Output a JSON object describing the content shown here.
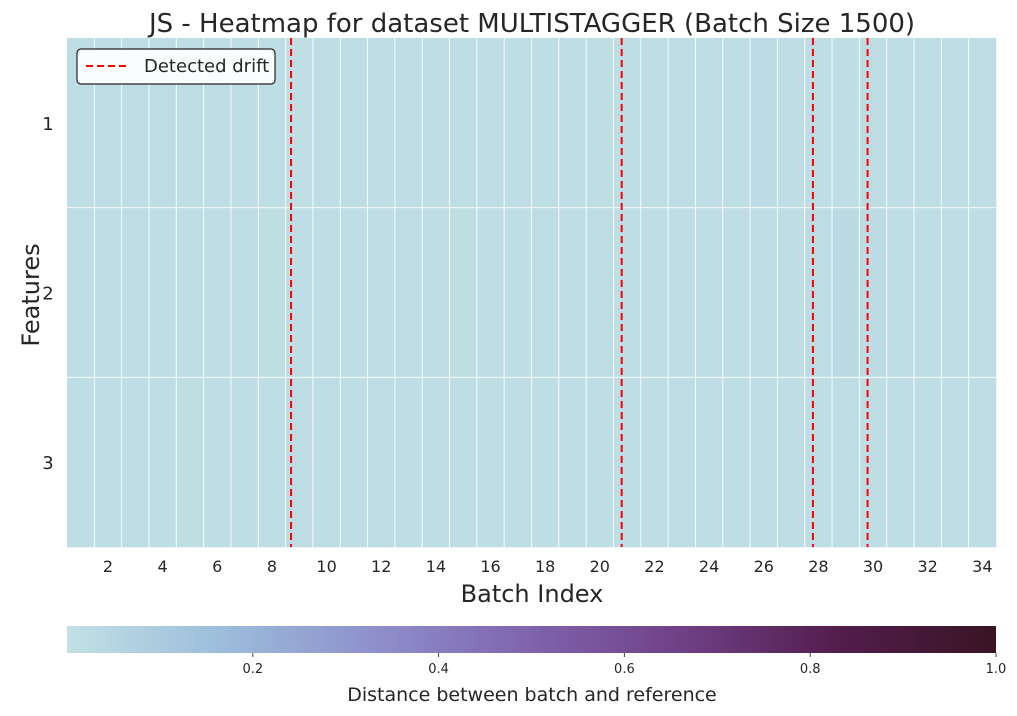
{
  "chart_data": {
    "type": "heatmap",
    "title": "JS - Heatmap for dataset MULTISTAGGER (Batch Size 1500)",
    "xlabel": "Batch Index",
    "ylabel": "Features",
    "x": [
      1,
      2,
      3,
      4,
      5,
      6,
      7,
      8,
      9,
      10,
      11,
      12,
      13,
      14,
      15,
      16,
      17,
      18,
      19,
      20,
      21,
      22,
      23,
      24,
      25,
      26,
      27,
      28,
      29,
      30,
      31,
      32,
      33,
      34
    ],
    "x_ticks": [
      "2",
      "4",
      "6",
      "8",
      "10",
      "12",
      "14",
      "16",
      "18",
      "20",
      "22",
      "24",
      "26",
      "28",
      "30",
      "32",
      "34"
    ],
    "y": [
      "1",
      "2",
      "3"
    ],
    "values": [
      [
        0.012,
        0.018,
        0.014,
        0.019,
        0.013,
        0.016,
        0.012,
        0.014,
        0.01,
        0.013,
        0.017,
        0.012,
        0.015,
        0.011,
        0.016,
        0.013,
        0.015,
        0.012,
        0.014,
        0.011,
        0.016,
        0.013,
        0.017,
        0.012,
        0.015,
        0.024,
        0.014,
        0.013,
        0.016,
        0.018,
        0.012,
        0.014,
        0.013,
        0.012
      ],
      [
        0.02,
        0.015,
        0.018,
        0.012,
        0.016,
        0.014,
        0.017,
        0.011,
        0.013,
        0.016,
        0.012,
        0.015,
        0.018,
        0.013,
        0.011,
        0.016,
        0.014,
        0.019,
        0.012,
        0.017,
        0.013,
        0.015,
        0.011,
        0.014,
        0.016,
        0.013,
        0.015,
        0.018,
        0.028,
        0.023,
        0.014,
        0.016,
        0.012,
        0.015
      ],
      [
        0.014,
        0.012,
        0.016,
        0.013,
        0.011,
        0.015,
        0.013,
        0.012,
        0.02,
        0.018,
        0.014,
        0.021,
        0.012,
        0.013,
        0.015,
        0.011,
        0.014,
        0.013,
        0.012,
        0.015,
        0.016,
        0.013,
        0.019,
        0.014,
        0.012,
        0.016,
        0.013,
        0.015,
        0.014,
        0.012,
        0.013,
        0.016,
        0.012,
        0.014
      ]
    ],
    "drift_lines": [
      8.7,
      20.8,
      27.8,
      29.8
    ],
    "legend": {
      "label": "Detected drift",
      "position": "upper-left"
    },
    "colorbar": {
      "label": "Distance between batch and reference",
      "range": [
        0,
        1.0
      ],
      "ticks": [
        "0.2",
        "0.4",
        "0.6",
        "0.8",
        "1.0"
      ],
      "tick_values": [
        0.2,
        0.4,
        0.6,
        0.8,
        1.0
      ],
      "colors": [
        "#c2e0e5",
        "#9cbddb",
        "#8e8fcb",
        "#7f63ad",
        "#6f3f85",
        "#521d4c",
        "#3a1424"
      ]
    },
    "grid": true,
    "line_color": "#ff0000"
  }
}
